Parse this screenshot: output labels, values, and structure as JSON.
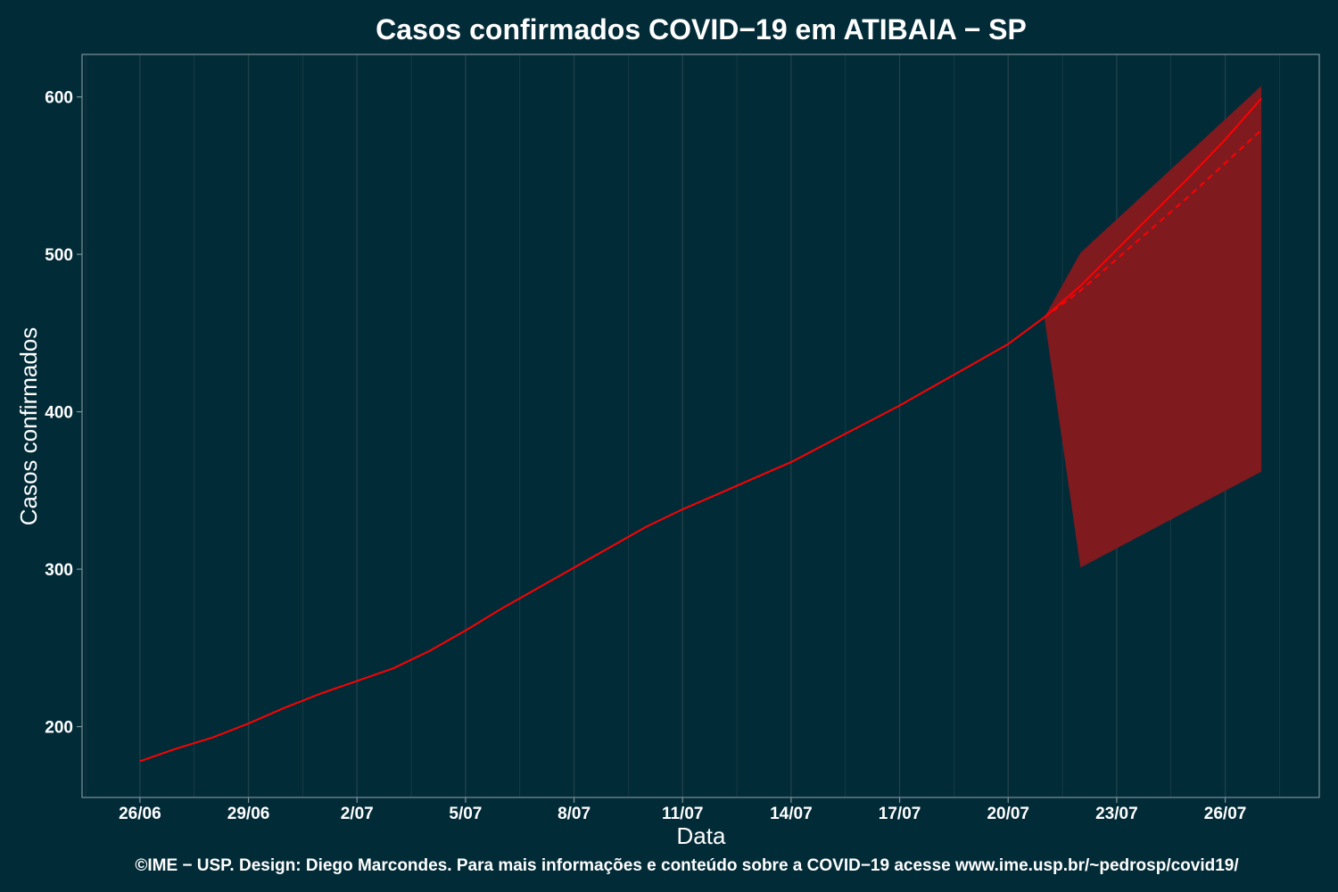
{
  "chart_data": {
    "type": "line",
    "title": "Casos confirmados COVID−19 em ATIBAIA − SP",
    "xlabel": "Data",
    "ylabel": "Casos confirmados",
    "caption": "©IME − USP. Design: Diego Marcondes. Para mais informações e conteúdo sobre a COVID−19 acesse www.ime.usp.br/~pedrosp/covid19/",
    "x_ticks": [
      "26/06",
      "29/06",
      "2/07",
      "5/07",
      "8/07",
      "11/07",
      "14/07",
      "17/07",
      "20/07",
      "23/07",
      "26/07"
    ],
    "x_range_days": [
      -1.6,
      32.6
    ],
    "ylim": [
      155,
      627
    ],
    "y_ticks": [
      200,
      300,
      400,
      500,
      600
    ],
    "grid": true,
    "colors": {
      "background": "#022b38",
      "line": "#ff0000",
      "band": "#7f1a1f",
      "grid": "#1e4049",
      "frame": "#7d9399",
      "text": "#ffffff"
    },
    "series": [
      {
        "style": "solid",
        "x": [
          "26/06",
          "27/06",
          "28/06",
          "29/06",
          "30/06",
          "1/07",
          "2/07",
          "3/07",
          "4/07",
          "5/07",
          "6/07",
          "7/07",
          "8/07",
          "9/07",
          "10/07",
          "11/07",
          "12/07",
          "13/07",
          "14/07",
          "15/07",
          "16/07",
          "17/07",
          "18/07",
          "19/07",
          "20/07",
          "21/07"
        ],
        "values": [
          178,
          186,
          193,
          202,
          212,
          221,
          229,
          237,
          248,
          261,
          275,
          288,
          301,
          314,
          327,
          338,
          348,
          358,
          368,
          380,
          392,
          404,
          417,
          430,
          443,
          460
        ]
      },
      {
        "style": "solid",
        "x": [
          "21/07",
          "22/07",
          "23/07",
          "24/07",
          "25/07",
          "26/07",
          "27/07"
        ],
        "values": [
          460,
          480,
          503,
          526,
          549,
          573,
          599
        ]
      },
      {
        "style": "dashed",
        "x": [
          "21/07",
          "22/07",
          "23/07",
          "24/07",
          "25/07",
          "26/07",
          "27/07"
        ],
        "values": [
          460,
          477,
          497,
          517,
          537,
          558,
          579
        ]
      }
    ],
    "band": {
      "x": [
        "21/07",
        "22/07",
        "27/07"
      ],
      "upper": [
        460,
        501,
        607
      ],
      "lower": [
        460,
        301,
        362
      ]
    }
  }
}
